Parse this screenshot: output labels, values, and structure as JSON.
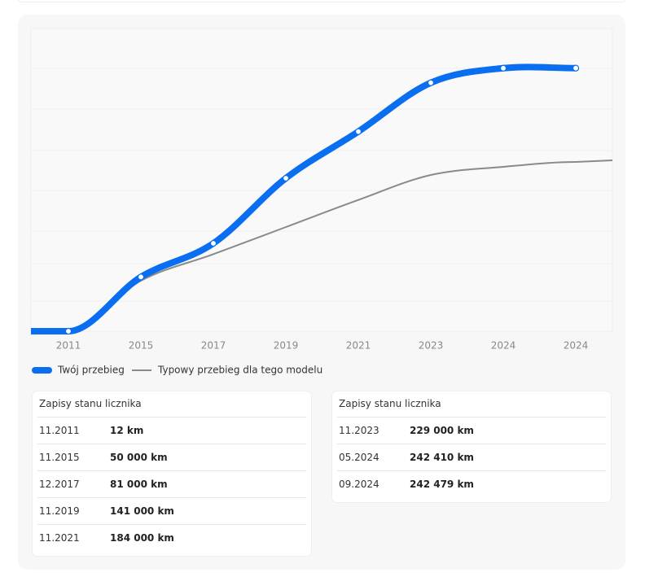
{
  "chart_data": {
    "type": "line",
    "categories": [
      "2011",
      "2015",
      "2017",
      "2019",
      "2021",
      "2023",
      "2024",
      "2024"
    ],
    "series": [
      {
        "name": "Twój przebieg",
        "color": "#0a6ef0",
        "values": [
          12,
          50000,
          81000,
          141000,
          184000,
          229000,
          242410,
          242479
        ]
      },
      {
        "name": "Typowy przebieg dla tego modelu",
        "color": "#8a8a8a",
        "values": [
          0,
          46500,
          71000,
          96000,
          121000,
          144000,
          151500,
          156000
        ]
      }
    ],
    "ylim": [
      0,
      279000
    ],
    "legend": "bottom-left"
  },
  "tables": [
    {
      "title": "Zapisy stanu licznika",
      "rows": [
        [
          "11.2011",
          "12 km"
        ],
        [
          "11.2015",
          "50 000 km"
        ],
        [
          "12.2017",
          "81 000 km"
        ],
        [
          "11.2019",
          "141 000 km"
        ],
        [
          "11.2021",
          "184 000 km"
        ]
      ]
    },
    {
      "title": "Zapisy stanu licznika",
      "rows": [
        [
          "11.2023",
          "229 000 km"
        ],
        [
          "05.2024",
          "242 410 km"
        ],
        [
          "09.2024",
          "242 479 km"
        ]
      ]
    }
  ]
}
